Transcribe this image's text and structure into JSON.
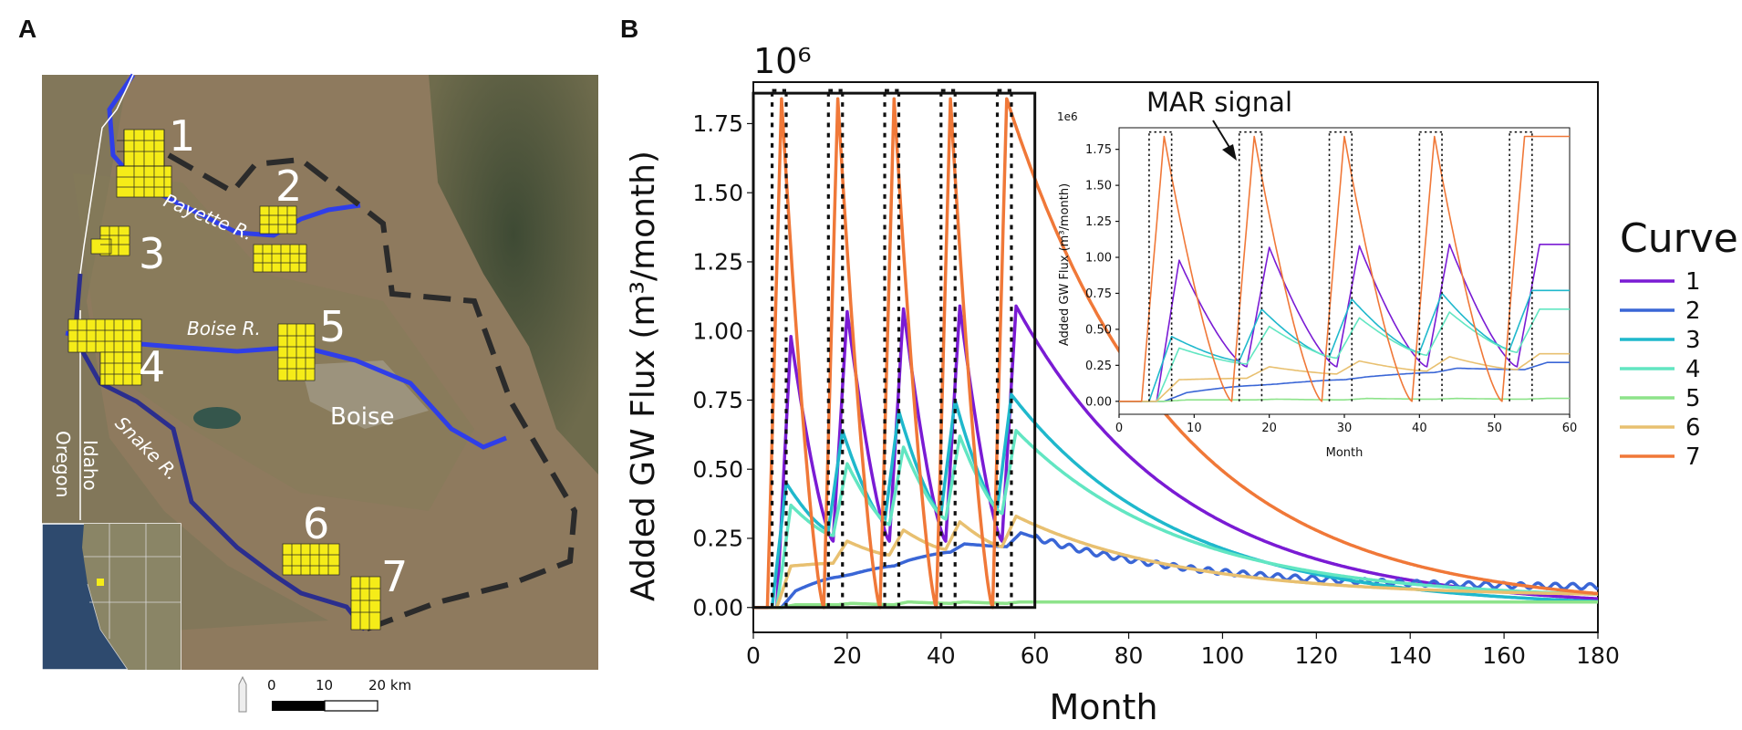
{
  "panels": {
    "a_label": "A",
    "b_label": "B"
  },
  "map": {
    "site_labels": [
      "1",
      "2",
      "3",
      "4",
      "5",
      "6",
      "7"
    ],
    "rivers": [
      "Payette R.",
      "Boise R.",
      "Snake R."
    ],
    "city": "Boise",
    "states": [
      "Oregon",
      "Idaho"
    ],
    "scalebar": {
      "ticks": [
        "0",
        "10",
        "20 km"
      ]
    },
    "colors": {
      "river": "#2f3ee8",
      "site": "#f5ec18",
      "boundary": "#2b2b2b"
    }
  },
  "chart_data": [
    {
      "type": "line",
      "xlabel": "Month",
      "ylabel": "Added GW Flux (m³/month)",
      "offset_text": "10⁶",
      "xlim": [
        0,
        180
      ],
      "ylim": [
        -0.09,
        1.9
      ],
      "xticks": [
        0,
        20,
        40,
        60,
        80,
        100,
        120,
        140,
        160,
        180
      ],
      "yticks": [
        0.0,
        0.25,
        0.5,
        0.75,
        1.0,
        1.25,
        1.5,
        1.75
      ],
      "xtick_labels": [
        "0",
        "20",
        "40",
        "60",
        "80",
        "100",
        "120",
        "140",
        "160",
        "180"
      ],
      "ytick_labels": [
        "0.00",
        "0.25",
        "0.50",
        "0.75",
        "1.00",
        "1.25",
        "1.50",
        "1.75"
      ],
      "legend_title": "Curve",
      "legend_placement": "right-outside",
      "mar_windows": [
        [
          4,
          7
        ],
        [
          16,
          19
        ],
        [
          28,
          31
        ],
        [
          40,
          43
        ],
        [
          52,
          55
        ]
      ],
      "highlight_box": {
        "x": [
          0,
          60
        ],
        "y": [
          0,
          1.86
        ]
      },
      "series": [
        {
          "name": "1",
          "color": "#7a1bd4",
          "peak_months": [
            8,
            20,
            32,
            44,
            56
          ],
          "peaks": [
            0.98,
            1.07,
            1.08,
            1.09,
            1.09
          ],
          "valleys": [
            0.22,
            0.24,
            0.24,
            0.24,
            0.24
          ],
          "tail_end": 0.0
        },
        {
          "name": "2",
          "color": "#3a66d6",
          "peak_months": [
            9,
            21,
            33,
            45,
            57
          ],
          "peaks": [
            0.06,
            0.12,
            0.17,
            0.23,
            0.27
          ],
          "valleys": [
            0.0,
            0.11,
            0.15,
            0.2,
            0.22
          ],
          "tail_end": 0.07
        },
        {
          "name": "3",
          "color": "#1fb8cc",
          "peak_months": [
            7,
            19,
            31,
            43,
            55
          ],
          "peaks": [
            0.45,
            0.64,
            0.71,
            0.75,
            0.77
          ],
          "valleys": [
            0.23,
            0.28,
            0.31,
            0.34,
            0.36
          ],
          "tail_end": 0.0
        },
        {
          "name": "4",
          "color": "#62e6c2",
          "peak_months": [
            8,
            20,
            32,
            44,
            56
          ],
          "peaks": [
            0.37,
            0.52,
            0.58,
            0.62,
            0.64
          ],
          "valleys": [
            0.2,
            0.26,
            0.3,
            0.32,
            0.34
          ],
          "tail_end": 0.03
        },
        {
          "name": "5",
          "color": "#8de38a",
          "peak_months": [
            9,
            21,
            33,
            45,
            57
          ],
          "peaks": [
            0.01,
            0.015,
            0.02,
            0.02,
            0.02
          ],
          "valleys": [
            0.0,
            0.01,
            0.01,
            0.015,
            0.015
          ],
          "tail_end": 0.02
        },
        {
          "name": "6",
          "color": "#e8c070",
          "peak_months": [
            8,
            20,
            32,
            44,
            56
          ],
          "peaks": [
            0.15,
            0.24,
            0.28,
            0.31,
            0.33
          ],
          "valleys": [
            0.1,
            0.16,
            0.19,
            0.21,
            0.22
          ],
          "tail_end": 0.04
        },
        {
          "name": "7",
          "color": "#f07838",
          "peak_months": [
            6,
            18,
            30,
            42,
            54
          ],
          "peaks": [
            1.84,
            1.84,
            1.84,
            1.84,
            1.84
          ],
          "valleys": [
            0.0,
            0.0,
            0.0,
            0.0,
            0.0
          ],
          "tail_end": 0.0
        }
      ]
    },
    {
      "type": "line",
      "role": "inset",
      "annotation": "MAR signal",
      "xlabel": "Month",
      "ylabel": "Added GW Flux (m³/month)",
      "offset_text": "1e6",
      "xlim": [
        0,
        60
      ],
      "ylim": [
        -0.09,
        1.9
      ],
      "xticks": [
        0,
        10,
        20,
        30,
        40,
        50,
        60
      ],
      "yticks": [
        0.0,
        0.25,
        0.5,
        0.75,
        1.0,
        1.25,
        1.5,
        1.75
      ],
      "xtick_labels": [
        "0",
        "10",
        "20",
        "30",
        "40",
        "50",
        "60"
      ],
      "ytick_labels": [
        "0.00",
        "0.25",
        "0.50",
        "0.75",
        "1.00",
        "1.25",
        "1.50",
        "1.75"
      ]
    }
  ]
}
